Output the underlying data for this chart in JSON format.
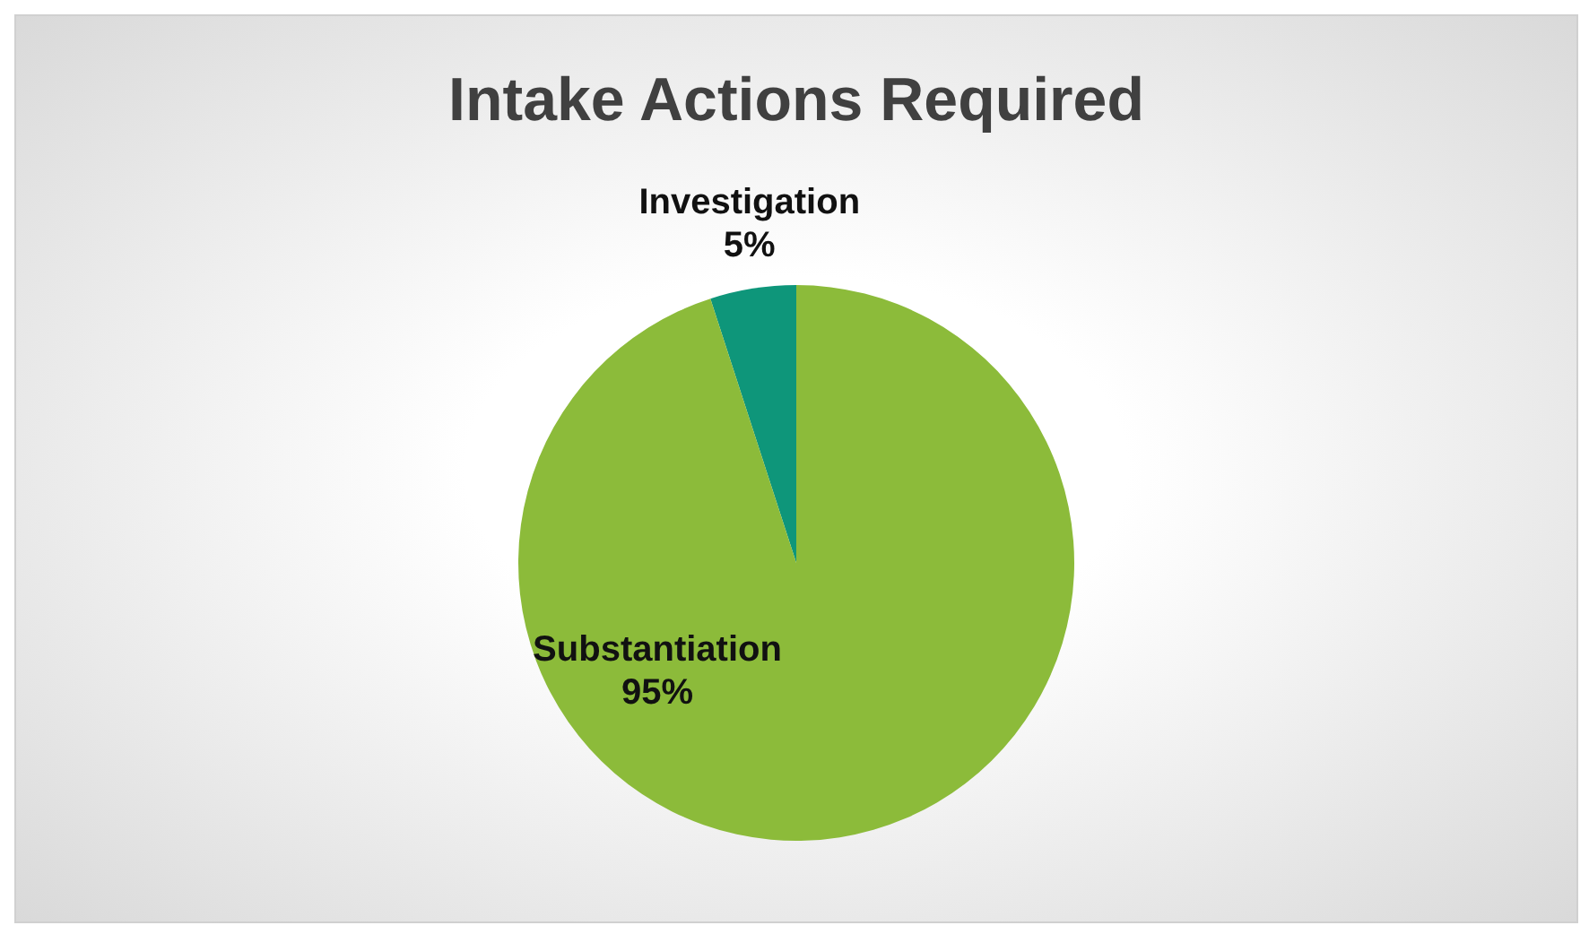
{
  "chart_data": {
    "type": "pie",
    "title": "Intake Actions Required",
    "categories": [
      "Investigation",
      "Substantiation"
    ],
    "values": [
      5,
      95
    ],
    "colors": [
      "#0e967a",
      "#8cbb3a"
    ],
    "value_labels": [
      "5%",
      "95%"
    ]
  }
}
